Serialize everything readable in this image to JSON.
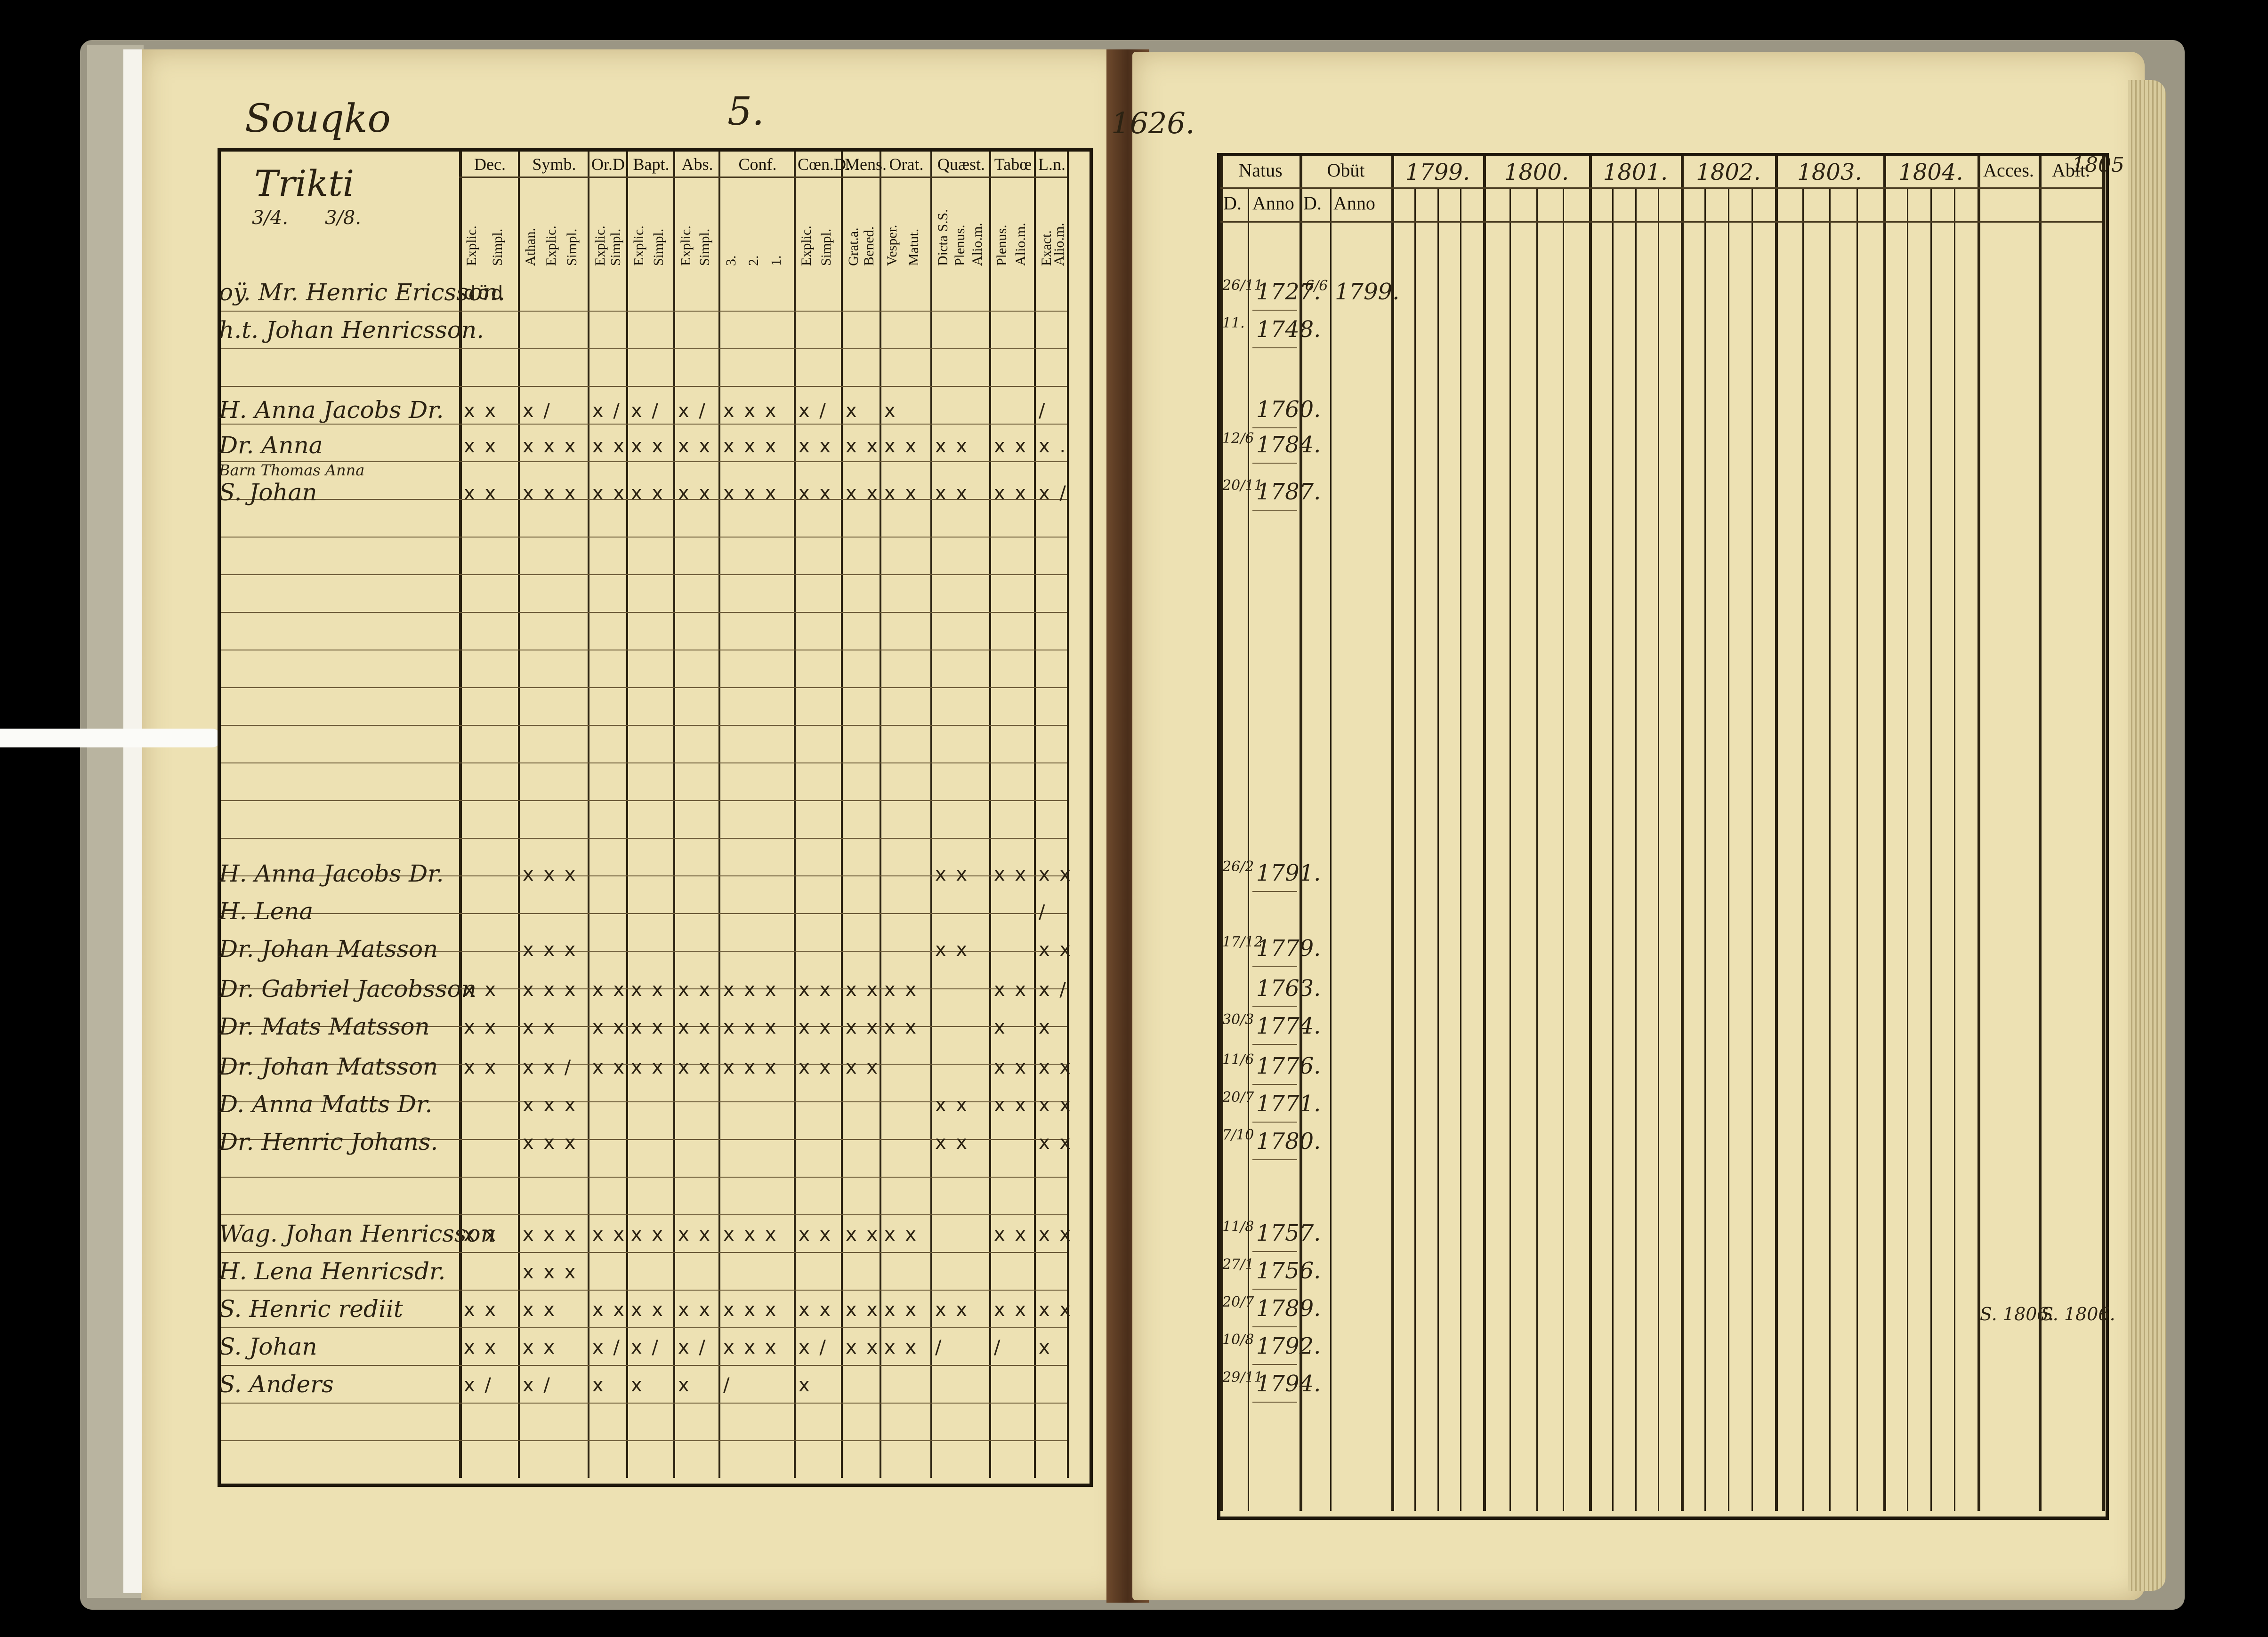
{
  "book": {
    "left_page": {
      "village": "Souqko",
      "page_number": "5.",
      "farm_name": "Trikti",
      "fraction_a": "3/4.",
      "fraction_b": "3/8.",
      "column_headers": [
        {
          "top": "Dec.",
          "sub": [
            "Explic.",
            "Simpl."
          ]
        },
        {
          "top": "Symb.",
          "sub": [
            "Athan.",
            "Explic.",
            "Simpl."
          ]
        },
        {
          "top": "Or.D.",
          "sub": [
            "Explic.",
            "Simpl."
          ]
        },
        {
          "top": "Bapt.",
          "sub": [
            "Explic.",
            "Simpl."
          ]
        },
        {
          "top": "Abs.",
          "sub": [
            "Explic.",
            "Simpl."
          ]
        },
        {
          "top": "Conf.",
          "sub": [
            "3.",
            "2.",
            "1."
          ]
        },
        {
          "top": "Cœn.D.",
          "sub": [
            "Explic.",
            "Simpl."
          ]
        },
        {
          "top": "Mens.",
          "sub": [
            "Grat.a.",
            "Bened."
          ]
        },
        {
          "top": "Orat.",
          "sub": [
            "Vesper.",
            "Matut."
          ]
        },
        {
          "top": "Quæst.",
          "sub": [
            "Dicta S.S.",
            "Plenus.",
            "Alio.m."
          ]
        },
        {
          "top": "Tabœ",
          "sub": [
            "Plenus.",
            "Alio.m."
          ]
        },
        {
          "top": "L.n.",
          "sub": [
            "Exact.",
            "Alio.m."
          ]
        }
      ],
      "rows": [
        {
          "name": "oÿ. Mr. Henric Ericsson.",
          "marks": [
            "död"
          ]
        },
        {
          "name": "h.t. Johan Henricsson.",
          "marks": []
        },
        {
          "name": "H. Anna Jacobs Dr.",
          "marks": [
            "x x",
            "x /",
            "x /",
            "x /",
            "x /",
            "x x x",
            "x /",
            "x",
            "x",
            "",
            "",
            "/"
          ]
        },
        {
          "name": "Dr. Anna",
          "marks": [
            "x x",
            "x x x",
            "x x",
            "x x",
            "x x",
            "x x x",
            "x x",
            "x x",
            "x x",
            "x x",
            "x x",
            "x ."
          ]
        },
        {
          "name": "Barn Thomas Anna",
          "marks": []
        },
        {
          "name": "S. Johan",
          "marks": [
            "x x",
            "x x x",
            "x x",
            "x x",
            "x x",
            "x x x",
            "x x",
            "x x",
            "x x",
            "x x",
            "x x",
            "x /"
          ]
        },
        {
          "name": "H. Anna Jacobs Dr.",
          "marks": [
            "",
            "x x x",
            "",
            "",
            "",
            "",
            "",
            "",
            "",
            "x x",
            "x x",
            "x x"
          ]
        },
        {
          "name": "H. Lena",
          "marks": [
            "",
            "",
            "",
            "",
            "",
            "",
            "",
            "",
            "",
            "",
            "",
            "/"
          ]
        },
        {
          "name": "Dr. Johan Matsson",
          "marks": [
            "",
            "x x x",
            "",
            "",
            "",
            "",
            "",
            "",
            "",
            "x x",
            "",
            "x x"
          ]
        },
        {
          "name": "Dr. Gabriel Jacobsson",
          "marks": [
            "x x",
            "x x x",
            "x x",
            "x x",
            "x x",
            "x x x",
            "x x",
            "x x",
            "x x",
            "",
            "x x",
            "x /"
          ]
        },
        {
          "name": "Dr. Mats Matsson",
          "marks": [
            "x x",
            "x x",
            "x x",
            "x x",
            "x x",
            "x x x",
            "x x",
            "x x",
            "x x",
            "",
            "x",
            "x"
          ]
        },
        {
          "name": "Dr. Johan Matsson",
          "marks": [
            "x x",
            "x x /",
            "x x",
            "x x",
            "x x",
            "x x x",
            "x x",
            "x x",
            "",
            "",
            "x x",
            "x x"
          ]
        },
        {
          "name": "D. Anna Matts Dr.",
          "marks": [
            "",
            "x x x",
            "",
            "",
            "",
            "",
            "",
            "",
            "",
            "x x",
            "x x",
            "x x"
          ]
        },
        {
          "name": "Dr. Henric Johans.",
          "marks": [
            "",
            "x x x",
            "",
            "",
            "",
            "",
            "",
            "",
            "",
            "x x",
            "",
            "x x"
          ]
        },
        {
          "name": "Wag. Johan Henricsson",
          "marks": [
            "x x",
            "x x x",
            "x x",
            "x x",
            "x x",
            "x x x",
            "x x",
            "x x",
            "x x",
            "",
            "x x",
            "x x"
          ]
        },
        {
          "name": "H. Lena Henricsdr.",
          "marks": [
            "",
            "x x x",
            "",
            "",
            "",
            "",
            "",
            "",
            "",
            "",
            "",
            ""
          ]
        },
        {
          "name": "S. Henric rediit",
          "marks": [
            "x x",
            "x x",
            "x x",
            "x x",
            "x x",
            "x x x",
            "x x",
            "x x",
            "x x",
            "x x",
            "x x",
            "x x"
          ]
        },
        {
          "name": "S. Johan",
          "marks": [
            "x x",
            "x x",
            "x /",
            "x /",
            "x /",
            "x x x",
            "x /",
            "x x",
            "x x",
            "/",
            "/",
            "x"
          ]
        },
        {
          "name": "S. Anders",
          "marks": [
            "x /",
            "x /",
            "x",
            "x",
            "x",
            "/",
            "x",
            "",
            "",
            "",
            "",
            ""
          ]
        }
      ]
    },
    "right_page": {
      "margin_page": "1626.",
      "margin_right": "1805",
      "headers": [
        "Natus",
        "Obüt",
        "1799.",
        "1800.",
        "1801.",
        "1802.",
        "1803.",
        "1804.",
        "Acces.",
        "Abit."
      ],
      "subheaders": [
        "D.",
        "Anno",
        "D.",
        "Anno"
      ],
      "rows": [
        {
          "day": "26/11",
          "natus": "1727.",
          "obiit_d": "6/6",
          "obiit": "1799."
        },
        {
          "day": "11.",
          "natus": "1748.",
          "obiit_d": "",
          "obiit": ""
        },
        {
          "day": "",
          "natus": "1760.",
          "obiit_d": "",
          "obiit": ""
        },
        {
          "day": "12/6",
          "natus": "1784.",
          "obiit_d": "",
          "obiit": ""
        },
        {
          "day": "20/11",
          "natus": "1787.",
          "obiit_d": "",
          "obiit": ""
        },
        {
          "day": "26/2",
          "natus": "1791.",
          "obiit_d": "",
          "obiit": ""
        },
        {
          "day": "17/12",
          "natus": "1779.",
          "obiit_d": "",
          "obiit": ""
        },
        {
          "day": "",
          "natus": "1763.",
          "obiit_d": "",
          "obiit": ""
        },
        {
          "day": "30/3",
          "natus": "1774.",
          "obiit_d": "",
          "obiit": ""
        },
        {
          "day": "11/6",
          "natus": "1776.",
          "obiit_d": "",
          "obiit": ""
        },
        {
          "day": "20/7",
          "natus": "1771.",
          "obiit_d": "",
          "obiit": ""
        },
        {
          "day": "7/10",
          "natus": "1780.",
          "obiit_d": "",
          "obiit": ""
        },
        {
          "day": "11/8",
          "natus": "1757.",
          "obiit_d": "",
          "obiit": ""
        },
        {
          "day": "27/1",
          "natus": "1756.",
          "obiit_d": "",
          "obiit": ""
        },
        {
          "day": "20/7",
          "natus": "1789.",
          "obiit_d": "",
          "obiit": ""
        },
        {
          "day": "10/8",
          "natus": "1792.",
          "obiit_d": "",
          "obiit": ""
        },
        {
          "day": "29/11",
          "natus": "1794.",
          "obiit_d": "",
          "obiit": ""
        }
      ],
      "abiit_notes": [
        "S. 1806.",
        "S. 1806."
      ]
    }
  }
}
